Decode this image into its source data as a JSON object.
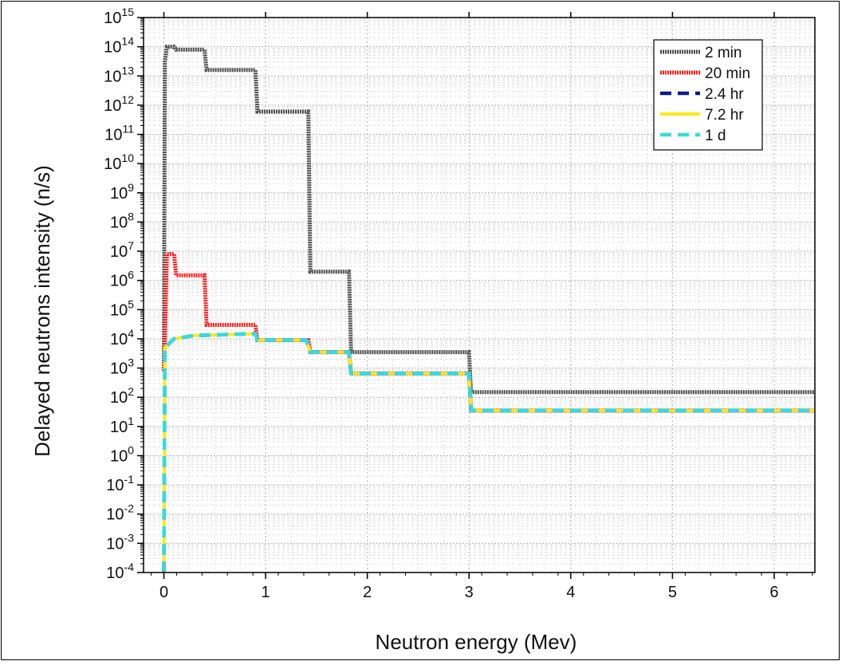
{
  "chart_data": {
    "type": "line",
    "xlabel": "Neutron energy (Mev)",
    "ylabel": "Delayed neutrons intensity (n/s)",
    "xlim": [
      -0.2,
      6.4
    ],
    "ylim_exponent": [
      -4,
      15
    ],
    "yscale": "log",
    "x_ticks": [
      "0",
      "1",
      "2",
      "3",
      "4",
      "5",
      "6"
    ],
    "y_tick_base": "10",
    "y_tick_exponents": [
      "-4",
      "-3",
      "-2",
      "-1",
      "0",
      "1",
      "2",
      "3",
      "4",
      "5",
      "6",
      "7",
      "8",
      "9",
      "10",
      "11",
      "12",
      "13",
      "14",
      "15"
    ],
    "grid": true,
    "legend_position": "top-right",
    "series": [
      {
        "name": "2 min",
        "color": "#4d4d4d",
        "dash": "dotted-thick",
        "points": [
          [
            0,
            800
          ],
          [
            0.01,
            30000000000000.0
          ],
          [
            0.03,
            100000000000000.0
          ],
          [
            0.1,
            100000000000000.0
          ],
          [
            0.12,
            80000000000000.0
          ],
          [
            0.4,
            80000000000000.0
          ],
          [
            0.42,
            16000000000000.0
          ],
          [
            0.9,
            16000000000000.0
          ],
          [
            0.92,
            600000000000.0
          ],
          [
            1.42,
            600000000000.0
          ],
          [
            1.44,
            2000000.0
          ],
          [
            1.82,
            2000000.0
          ],
          [
            1.84,
            3500.0
          ],
          [
            3.0,
            3500.0
          ],
          [
            3.02,
            150
          ],
          [
            6.4,
            150
          ]
        ]
      },
      {
        "name": "20 min",
        "color": "#ff1a1a",
        "dash": "dotted-thick",
        "points": [
          [
            0,
            800
          ],
          [
            0.01,
            6000.0
          ],
          [
            0.03,
            8000000.0
          ],
          [
            0.1,
            8000000.0
          ],
          [
            0.12,
            1500000.0
          ],
          [
            0.4,
            1500000.0
          ],
          [
            0.42,
            30000.0
          ],
          [
            0.9,
            30000.0
          ],
          [
            0.92,
            9000.0
          ],
          [
            1.42,
            9000.0
          ],
          [
            1.44,
            3500.0
          ],
          [
            1.82,
            3500.0
          ],
          [
            1.84,
            650
          ],
          [
            3.0,
            650
          ],
          [
            3.02,
            35
          ],
          [
            6.4,
            35
          ]
        ]
      },
      {
        "name": "2.4 hr",
        "color": "#0d1a8c",
        "dash": "dashed",
        "points": [
          [
            0,
            0.0001
          ],
          [
            0.01,
            5000.0
          ],
          [
            0.1,
            10000.0
          ],
          [
            0.3,
            13000.0
          ],
          [
            0.9,
            15000.0
          ],
          [
            0.92,
            9000.0
          ],
          [
            1.4,
            9000.0
          ],
          [
            1.44,
            3500.0
          ],
          [
            1.82,
            3500.0
          ],
          [
            1.84,
            650
          ],
          [
            3.0,
            650
          ],
          [
            3.02,
            35
          ],
          [
            6.4,
            35
          ]
        ]
      },
      {
        "name": "7.2 hr",
        "color": "#ffe81a",
        "dash": "solid",
        "points": [
          [
            0,
            0.0001
          ],
          [
            0.01,
            5000.0
          ],
          [
            0.1,
            10000.0
          ],
          [
            0.3,
            13000.0
          ],
          [
            0.9,
            15000.0
          ],
          [
            0.92,
            9000.0
          ],
          [
            1.4,
            9000.0
          ],
          [
            1.44,
            3500.0
          ],
          [
            1.82,
            3500.0
          ],
          [
            1.84,
            650
          ],
          [
            3.0,
            650
          ],
          [
            3.02,
            35
          ],
          [
            6.4,
            35
          ]
        ]
      },
      {
        "name": "1 d",
        "color": "#33dddd",
        "dash": "dashed",
        "points": [
          [
            0,
            0.0001
          ],
          [
            0.01,
            5000.0
          ],
          [
            0.1,
            10000.0
          ],
          [
            0.3,
            13000.0
          ],
          [
            0.9,
            15000.0
          ],
          [
            0.92,
            9000.0
          ],
          [
            1.4,
            9000.0
          ],
          [
            1.44,
            3500.0
          ],
          [
            1.82,
            3500.0
          ],
          [
            1.84,
            650
          ],
          [
            3.0,
            650
          ],
          [
            3.02,
            35
          ],
          [
            6.4,
            35
          ]
        ]
      }
    ]
  }
}
